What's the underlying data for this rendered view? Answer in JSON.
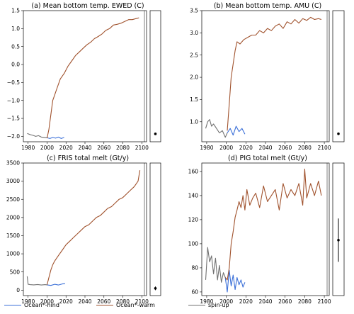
{
  "colors": {
    "hind": "#3a6fd8",
    "warm": "#a0522d",
    "spin": "#707070",
    "axis": "#000000"
  },
  "legend": [
    {
      "key": "hind",
      "label": "Ocean*-hind"
    },
    {
      "key": "warm",
      "label": "Ocean*-warm"
    },
    {
      "key": "spin",
      "label": "spin-up"
    }
  ],
  "chart_data": [
    {
      "type": "line",
      "title": "(a) Mean bottom temp. EWED (C)",
      "xlabel": "",
      "ylabel": "",
      "xlim": [
        1975,
        2105
      ],
      "ylim": [
        -2.15,
        1.5
      ],
      "xticks": [
        1980,
        2000,
        2020,
        2040,
        2060,
        2080,
        2100
      ],
      "yticks": [
        -2.0,
        -1.5,
        -1.0,
        -0.5,
        0.0,
        0.5,
        1.0,
        1.5
      ],
      "yticklabels": [
        "−2.0",
        "−1.5",
        "−1.0",
        "−0.5",
        "0.0",
        "0.5",
        "1.0",
        "1.5"
      ],
      "series": [
        {
          "key": "spin",
          "x": [
            1979,
            1982,
            1985,
            1988,
            1991,
            1994,
            1997,
            2000
          ],
          "y": [
            -1.92,
            -1.95,
            -1.97,
            -2.0,
            -1.98,
            -2.02,
            -2.03,
            -2.04
          ]
        },
        {
          "key": "hind",
          "x": [
            2000,
            2003,
            2006,
            2009,
            2012,
            2015,
            2018
          ],
          "y": [
            -2.04,
            -2.06,
            -2.03,
            -2.05,
            -2.02,
            -2.06,
            -2.03
          ]
        },
        {
          "key": "warm",
          "x": [
            2000,
            2002,
            2004,
            2006,
            2008,
            2010,
            2014,
            2018,
            2022,
            2026,
            2030,
            2034,
            2038,
            2042,
            2046,
            2050,
            2054,
            2058,
            2062,
            2066,
            2070,
            2074,
            2078,
            2082,
            2086,
            2090,
            2094,
            2097
          ],
          "y": [
            -2.05,
            -1.8,
            -1.4,
            -1.0,
            -0.85,
            -0.7,
            -0.4,
            -0.25,
            -0.05,
            0.1,
            0.25,
            0.35,
            0.45,
            0.55,
            0.62,
            0.72,
            0.78,
            0.85,
            0.95,
            1.0,
            1.1,
            1.12,
            1.15,
            1.2,
            1.25,
            1.25,
            1.28,
            1.3
          ]
        }
      ],
      "side_point": {
        "value": -1.93,
        "err": 0.02
      }
    },
    {
      "type": "line",
      "title": "(b) Mean bottom temp. AMU (C)",
      "xlabel": "",
      "ylabel": "",
      "xlim": [
        1975,
        2105
      ],
      "ylim": [
        0.55,
        3.5
      ],
      "xticks": [
        1980,
        2000,
        2020,
        2040,
        2060,
        2080,
        2100
      ],
      "yticks": [
        1.0,
        1.5,
        2.0,
        2.5,
        3.0,
        3.5
      ],
      "yticklabels": [
        "1.0",
        "1.5",
        "2.0",
        "2.5",
        "3.0",
        "3.5"
      ],
      "series": [
        {
          "key": "spin",
          "x": [
            1979,
            1981,
            1983,
            1985,
            1987,
            1990,
            1993,
            1996,
            1999,
            2001
          ],
          "y": [
            0.85,
            1.0,
            1.05,
            0.9,
            0.95,
            0.85,
            0.75,
            0.8,
            0.65,
            0.75
          ]
        },
        {
          "key": "hind",
          "x": [
            2001,
            2004,
            2007,
            2010,
            2013,
            2016,
            2019
          ],
          "y": [
            0.75,
            0.85,
            0.7,
            0.9,
            0.78,
            0.85,
            0.72
          ]
        },
        {
          "key": "warm",
          "x": [
            2001,
            2003,
            2005,
            2007,
            2009,
            2011,
            2014,
            2018,
            2022,
            2026,
            2030,
            2034,
            2038,
            2042,
            2046,
            2050,
            2054,
            2058,
            2062,
            2066,
            2070,
            2074,
            2078,
            2082,
            2086,
            2090,
            2094,
            2097
          ],
          "y": [
            0.8,
            1.4,
            2.0,
            2.3,
            2.6,
            2.8,
            2.75,
            2.85,
            2.9,
            2.95,
            2.95,
            3.05,
            3.0,
            3.1,
            3.05,
            3.15,
            3.2,
            3.1,
            3.25,
            3.2,
            3.3,
            3.22,
            3.32,
            3.28,
            3.35,
            3.3,
            3.32,
            3.3
          ]
        }
      ],
      "side_point": {
        "value": 0.73,
        "err": 0.02
      }
    },
    {
      "type": "line",
      "title": "(c) FRIS total melt (Gt/y)",
      "xlabel": "",
      "ylabel": "",
      "xlim": [
        1975,
        2105
      ],
      "ylim": [
        -150,
        3500
      ],
      "xticks": [
        1980,
        2000,
        2020,
        2040,
        2060,
        2080,
        2100
      ],
      "yticks": [
        0,
        500,
        1000,
        1500,
        2000,
        2500,
        3000,
        3500
      ],
      "yticklabels": [
        "0",
        "500",
        "1000",
        "1500",
        "2000",
        "2500",
        "3000",
        "3500"
      ],
      "series": [
        {
          "key": "spin",
          "x": [
            1979,
            1980,
            1982,
            1986,
            1990,
            1994,
            1998,
            2000
          ],
          "y": [
            380,
            160,
            150,
            145,
            155,
            140,
            150,
            145
          ]
        },
        {
          "key": "hind",
          "x": [
            2000,
            2004,
            2008,
            2012,
            2016,
            2019
          ],
          "y": [
            145,
            130,
            160,
            140,
            170,
            180
          ]
        },
        {
          "key": "warm",
          "x": [
            2000,
            2002,
            2004,
            2006,
            2008,
            2012,
            2016,
            2020,
            2024,
            2028,
            2032,
            2036,
            2040,
            2044,
            2048,
            2052,
            2056,
            2060,
            2064,
            2068,
            2072,
            2076,
            2080,
            2084,
            2088,
            2092,
            2096,
            2098
          ],
          "y": [
            150,
            350,
            550,
            700,
            800,
            950,
            1100,
            1250,
            1350,
            1450,
            1550,
            1650,
            1750,
            1800,
            1900,
            2000,
            2050,
            2150,
            2250,
            2300,
            2400,
            2500,
            2550,
            2650,
            2750,
            2850,
            3000,
            3300
          ]
        }
      ],
      "side_point": {
        "value": 50,
        "err": 50
      }
    },
    {
      "type": "line",
      "title": "(d) PIG total melt (Gt/y)",
      "xlabel": "",
      "ylabel": "",
      "xlim": [
        1975,
        2105
      ],
      "ylim": [
        57,
        167
      ],
      "xticks": [
        1980,
        2000,
        2020,
        2040,
        2060,
        2080,
        2100
      ],
      "yticks": [
        60,
        80,
        100,
        120,
        140,
        160
      ],
      "yticklabels": [
        "60",
        "80",
        "100",
        "120",
        "140",
        "160"
      ],
      "series": [
        {
          "key": "spin",
          "x": [
            1979,
            1981,
            1983,
            1985,
            1987,
            1989,
            1991,
            1993,
            1995,
            1997,
            1999
          ],
          "y": [
            70,
            97,
            85,
            90,
            75,
            88,
            70,
            82,
            68,
            76,
            72
          ]
        },
        {
          "key": "hind",
          "x": [
            1999,
            2001,
            2003,
            2005,
            2007,
            2009,
            2011,
            2013,
            2015,
            2017,
            2019
          ],
          "y": [
            72,
            60,
            78,
            65,
            74,
            62,
            72,
            66,
            70,
            64,
            68
          ]
        },
        {
          "key": "warm",
          "x": [
            1999,
            2001,
            2003,
            2005,
            2007,
            2009,
            2011,
            2013,
            2015,
            2017,
            2019,
            2021,
            2024,
            2027,
            2030,
            2034,
            2038,
            2042,
            2046,
            2050,
            2054,
            2058,
            2062,
            2066,
            2070,
            2074,
            2078,
            2080,
            2082,
            2086,
            2090,
            2094,
            2097
          ],
          "y": [
            72,
            70,
            80,
            100,
            110,
            122,
            128,
            135,
            130,
            140,
            128,
            145,
            132,
            138,
            142,
            130,
            148,
            135,
            140,
            145,
            128,
            150,
            138,
            145,
            140,
            150,
            132,
            162,
            138,
            150,
            140,
            152,
            140
          ]
        }
      ],
      "side_point": {
        "value": 103,
        "err": 18
      }
    }
  ]
}
